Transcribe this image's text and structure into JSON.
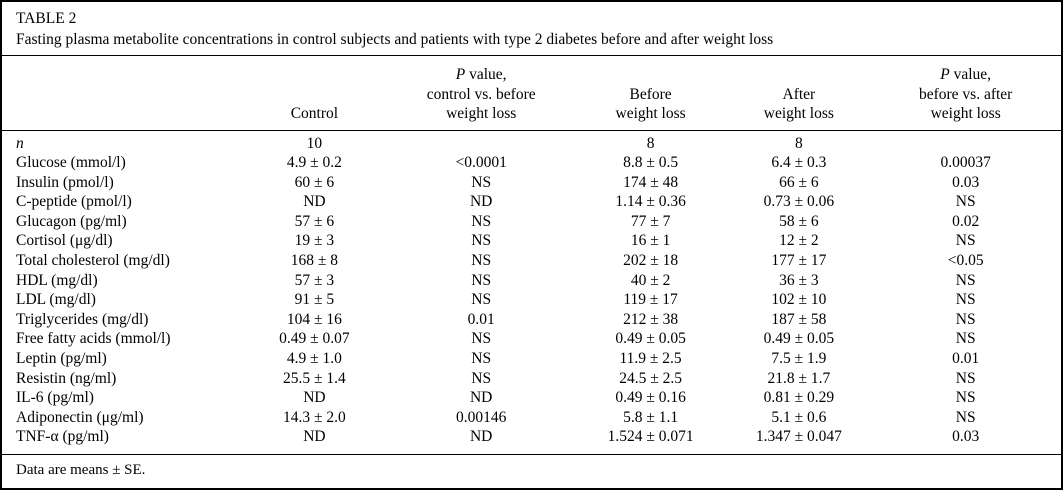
{
  "page": {
    "title": "TABLE 2",
    "caption": "Fasting plasma metabolite concentrations in control subjects and patients with type 2 diabetes before and after weight loss",
    "footnote": "Data are means ± SE.",
    "text_color": "#000000",
    "background_color": "#ffffff",
    "border_color": "#000000"
  },
  "table": {
    "headers": {
      "row_label": "",
      "control": "Control",
      "p_control_vs_before": {
        "italic": "P",
        "rest": " value,",
        "line2": "control vs. before",
        "line3": "weight loss"
      },
      "before": {
        "line1": "Before",
        "line2": "weight loss"
      },
      "after": {
        "line1": "After",
        "line2": "weight loss"
      },
      "p_before_vs_after": {
        "italic": "P",
        "rest": " value,",
        "line2": "before vs. after",
        "line3": "weight loss"
      }
    },
    "rows": [
      {
        "label": "n",
        "italic": true,
        "cells": [
          "10",
          "",
          "8",
          "8",
          ""
        ]
      },
      {
        "label": "Glucose (mmol/l)",
        "cells": [
          "4.9 ± 0.2",
          "<0.0001",
          "8.8 ± 0.5",
          "6.4 ± 0.3",
          "0.00037"
        ]
      },
      {
        "label": "Insulin (pmol/l)",
        "cells": [
          "60 ± 6",
          "NS",
          "174 ± 48",
          "66 ± 6",
          "0.03"
        ]
      },
      {
        "label": "C-peptide (pmol/l)",
        "cells": [
          "ND",
          "ND",
          "1.14 ± 0.36",
          "0.73 ± 0.06",
          "NS"
        ]
      },
      {
        "label": "Glucagon (pg/ml)",
        "cells": [
          "57 ± 6",
          "NS",
          "77 ± 7",
          "58 ± 6",
          "0.02"
        ]
      },
      {
        "label": "Cortisol (μg/dl)",
        "cells": [
          "19 ± 3",
          "NS",
          "16 ± 1",
          "12 ± 2",
          "NS"
        ]
      },
      {
        "label": "Total cholesterol (mg/dl)",
        "cells": [
          "168 ± 8",
          "NS",
          "202 ± 18",
          "177 ± 17",
          "<0.05"
        ]
      },
      {
        "label": "HDL (mg/dl)",
        "cells": [
          "57 ± 3",
          "NS",
          "40 ± 2",
          "36 ± 3",
          "NS"
        ]
      },
      {
        "label": "LDL (mg/dl)",
        "cells": [
          "91 ± 5",
          "NS",
          "119 ± 17",
          "102 ± 10",
          "NS"
        ]
      },
      {
        "label": "Triglycerides (mg/dl)",
        "cells": [
          "104 ± 16",
          "0.01",
          "212 ± 38",
          "187 ± 58",
          "NS"
        ]
      },
      {
        "label": "Free fatty acids (mmol/l)",
        "cells": [
          "0.49 ± 0.07",
          "NS",
          "0.49 ± 0.05",
          "0.49 ± 0.05",
          "NS"
        ]
      },
      {
        "label": "Leptin (pg/ml)",
        "cells": [
          "4.9 ± 1.0",
          "NS",
          "11.9 ± 2.5",
          "7.5 ± 1.9",
          "0.01"
        ]
      },
      {
        "label": "Resistin (ng/ml)",
        "cells": [
          "25.5 ± 1.4",
          "NS",
          "24.5 ± 2.5",
          "21.8 ± 1.7",
          "NS"
        ]
      },
      {
        "label": "IL-6 (pg/ml)",
        "cells": [
          "ND",
          "ND",
          "0.49 ± 0.16",
          "0.81 ± 0.29",
          "NS"
        ]
      },
      {
        "label": "Adiponectin (μg/ml)",
        "cells": [
          "14.3 ± 2.0",
          "0.00146",
          "5.8 ± 1.1",
          "5.1 ± 0.6",
          "NS"
        ]
      },
      {
        "label": "TNF-α (pg/ml)",
        "cells": [
          "ND",
          "ND",
          "1.524 ± 0.071",
          "1.347 ± 0.047",
          "0.03"
        ]
      }
    ]
  }
}
